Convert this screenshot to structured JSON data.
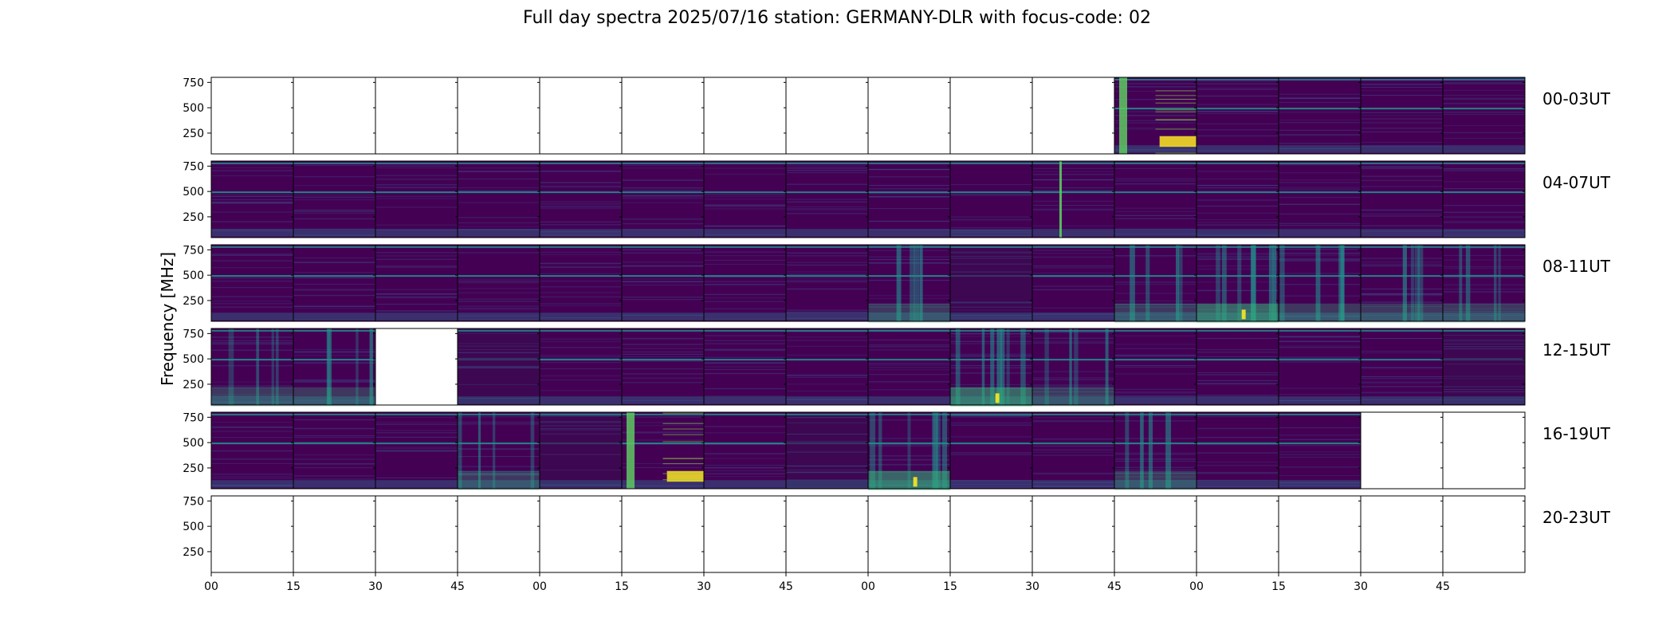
{
  "chart_data": {
    "type": "heatmap",
    "title": "Full day spectra 2025/07/16 station: GERMANY-DLR with focus-code: 02",
    "ylabel": "Frequency [MHz]",
    "xlabel": "",
    "y_ticks": [
      250,
      500,
      750
    ],
    "ylim": [
      45,
      800
    ],
    "x_ticks": [
      "00",
      "15",
      "30",
      "45",
      "00",
      "15",
      "30",
      "45",
      "00",
      "15",
      "30",
      "45",
      "00",
      "15",
      "30",
      "45"
    ],
    "colormap": "viridis",
    "rows": [
      {
        "label": "00-03UT",
        "panels": [
          "empty",
          "empty",
          "empty",
          "empty",
          "empty",
          "empty",
          "empty",
          "empty",
          "empty",
          "empty",
          "empty",
          "burst-strong",
          "normal",
          "normal",
          "normal",
          "normal"
        ]
      },
      {
        "label": "04-07UT",
        "panels": [
          "normal",
          "normal",
          "normal",
          "normal",
          "normal",
          "normal",
          "normal",
          "normal",
          "normal",
          "normal",
          "spike",
          "normal",
          "normal",
          "normal",
          "normal",
          "normal"
        ]
      },
      {
        "label": "08-11UT",
        "panels": [
          "normal",
          "normal",
          "normal",
          "normal",
          "normal",
          "normal",
          "normal",
          "normal",
          "active",
          "dark",
          "normal",
          "active",
          "active-strong",
          "active",
          "active",
          "active"
        ]
      },
      {
        "label": "12-15UT",
        "panels": [
          "active",
          "active",
          "empty",
          "dark",
          "normal",
          "normal",
          "normal",
          "normal",
          "normal",
          "active-strong",
          "active",
          "normal",
          "normal",
          "normal",
          "normal",
          "dark"
        ]
      },
      {
        "label": "16-19UT",
        "panels": [
          "normal",
          "normal",
          "normal",
          "active",
          "dark",
          "burst-strong",
          "normal",
          "dark",
          "active-strong",
          "normal",
          "normal",
          "active",
          "normal",
          "normal",
          "empty",
          "empty"
        ]
      },
      {
        "label": "20-23UT",
        "panels": [
          "empty",
          "empty",
          "empty",
          "empty",
          "empty",
          "empty",
          "empty",
          "empty",
          "empty",
          "empty",
          "empty",
          "empty",
          "empty",
          "empty",
          "empty",
          "empty"
        ]
      }
    ]
  },
  "colors": {
    "background": "#440154",
    "band": "#21918c",
    "band_bright": "#5ec962",
    "peak": "#fde725"
  }
}
